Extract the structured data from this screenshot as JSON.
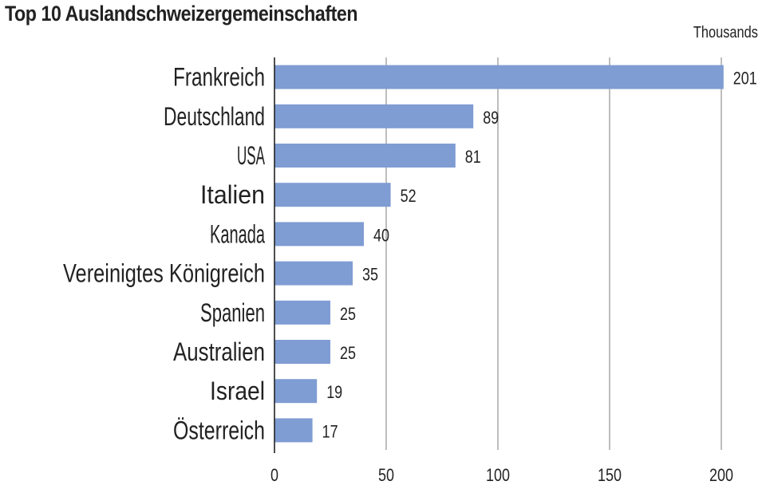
{
  "chart_data": {
    "type": "bar",
    "orientation": "horizontal",
    "title": "Top 10 Auslandschweizergemeinschaften",
    "unit_label": "Thousands",
    "categories": [
      "Frankreich",
      "Deutschland",
      "USA",
      "Italien",
      "Kanada",
      "Vereinigtes Königreich",
      "Spanien",
      "Australien",
      "Israel",
      "Österreich"
    ],
    "values": [
      201,
      89,
      81,
      52,
      40,
      35,
      25,
      25,
      19,
      17
    ],
    "xlim": [
      0,
      200
    ],
    "xticks": [
      0,
      50,
      100,
      150,
      200
    ],
    "grid": true,
    "bar_color": "#7f9cd3"
  }
}
